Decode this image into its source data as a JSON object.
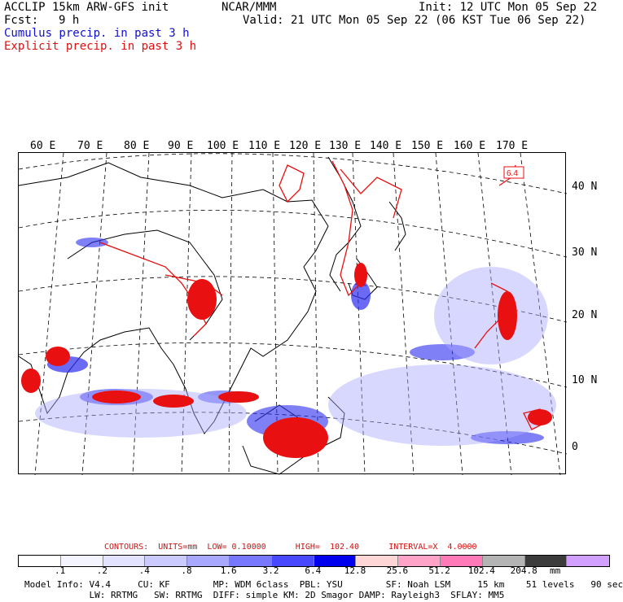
{
  "header": {
    "model": "ACCLIP 15km ARW-GFS init",
    "org": "NCAR/MMM",
    "init": "Init: 12 UTC Mon 05 Sep 22",
    "fcst_label": "Fcst:",
    "fcst_value": "9 h",
    "valid": "Valid: 21 UTC Mon 05 Sep 22 (06 KST Tue 06 Sep 22)",
    "legend_cumulus": "Cumulus precip. in past 3 h",
    "legend_explicit": "Explicit precip. in past 3 h"
  },
  "map": {
    "longitude_labels": [
      "60 E",
      "70 E",
      "80 E",
      "90 E",
      "100 E",
      "110 E",
      "120 E",
      "130 E",
      "140 E",
      "150 E",
      "160 E",
      "170 E"
    ],
    "latitude_labels": [
      "40 N",
      "30 N",
      "20 N",
      "10 N",
      "0"
    ],
    "contour_max_label": "6.4",
    "colors": {
      "cumulus": "#2b2bf0",
      "explicit": "#e81010",
      "coast": "#000000",
      "grid": "#000000"
    }
  },
  "contour_info": "CONTOURS:  UNITS=mm  LOW= 0.10000      HIGH=  102.40      INTERVAL=X  4.0000",
  "colorbar": {
    "colors": [
      "#ffffff",
      "#f4f4ff",
      "#e3e3ff",
      "#cacaff",
      "#a8a8ff",
      "#7878ff",
      "#4848ff",
      "#0000ee",
      "#ffd6d6",
      "#ffa3c8",
      "#ff78b8",
      "#b4b4b4",
      "#3c3c3c",
      "#d2a0ff"
    ],
    "labels": [
      ".1",
      ".2",
      ".4",
      ".8",
      "1.6",
      "3.2",
      "6.4",
      "12.8",
      "25.6",
      "51.2",
      "102.4",
      "204.8"
    ],
    "units": "mm"
  },
  "footer": {
    "line1": "Model Info: V4.4     CU: KF        MP: WDM 6class  PBL: YSU        SF: Noah LSM     15 km    51 levels   90 sec",
    "line2": "            LW: RRTMG   SW: RRTMG  DIFF: simple KM: 2D Smagor DAMP: Rayleigh3  SFLAY: MM5"
  }
}
